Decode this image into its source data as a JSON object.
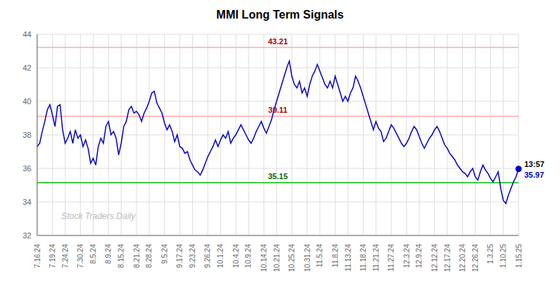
{
  "chart_data": {
    "type": "line",
    "title": "MMI Long Term Signals",
    "color": "#0000cc",
    "grid": true,
    "ylim": [
      32,
      44
    ],
    "yticks": [
      32,
      34,
      36,
      38,
      40,
      42,
      44
    ],
    "watermark": "Stock Traders Daily",
    "hlines": [
      {
        "value": 43.21,
        "label": "43.21",
        "color": "#ffaaaa",
        "label_color": "#aa0000"
      },
      {
        "value": 39.11,
        "label": "39.11",
        "color": "#ffaaaa",
        "label_color": "#aa0000"
      },
      {
        "value": 35.15,
        "label": "35.15",
        "color": "#44cc44",
        "label_color": "#006600"
      }
    ],
    "last_point": {
      "label": "13:57",
      "value": 35.97
    },
    "categories": [
      "7.16.24",
      null,
      null,
      null,
      null,
      null,
      "7.19.24",
      null,
      null,
      null,
      null,
      "7.24.24",
      null,
      null,
      null,
      null,
      null,
      "7.30.24",
      null,
      null,
      null,
      null,
      "8.5.24",
      null,
      null,
      null,
      null,
      null,
      "8.9.24",
      null,
      null,
      null,
      null,
      "8.15.24",
      null,
      null,
      null,
      null,
      null,
      "8.21.24",
      null,
      null,
      null,
      null,
      "8.28.24",
      null,
      null,
      null,
      null,
      null,
      "9.5.24",
      null,
      null,
      null,
      null,
      null,
      "9.17.24",
      null,
      null,
      null,
      null,
      "9.23.24",
      null,
      null,
      null,
      null,
      null,
      "9.26.24",
      null,
      null,
      null,
      null,
      "10.1.24",
      null,
      null,
      null,
      null,
      null,
      "10.4.24",
      null,
      null,
      null,
      null,
      "10.9.24",
      null,
      null,
      null,
      null,
      null,
      "10.14.24",
      null,
      null,
      null,
      null,
      "10.21.24",
      null,
      null,
      null,
      null,
      null,
      "10.25.24",
      null,
      null,
      null,
      null,
      null,
      "10.31.24",
      null,
      null,
      null,
      null,
      "11.5.24",
      null,
      null,
      null,
      null,
      null,
      "11.8.24",
      null,
      null,
      null,
      null,
      "11.13.24",
      null,
      null,
      null,
      null,
      null,
      "11.18.24",
      null,
      null,
      null,
      null,
      "11.21.24",
      null,
      null,
      null,
      null,
      null,
      "11.27.24",
      null,
      null,
      null,
      null,
      null,
      "12.3.24",
      null,
      null,
      null,
      null,
      "12.9.24",
      null,
      null,
      null,
      null,
      null,
      "12.12.24",
      null,
      null,
      null,
      null,
      "12.17.24",
      null,
      null,
      null,
      null,
      null,
      "12.20.24",
      null,
      null,
      null,
      null,
      "12.26.24",
      null,
      null,
      null,
      null,
      null,
      "1.3.25",
      null,
      null,
      null,
      null,
      "1.10.25",
      null,
      null,
      null,
      null,
      null,
      "1.15.25"
    ],
    "values": [
      37.3,
      37.5,
      38.2,
      38.8,
      39.5,
      39.8,
      39.2,
      38.5,
      39.7,
      39.8,
      38.3,
      37.5,
      37.8,
      38.2,
      37.5,
      38.3,
      37.8,
      38.0,
      37.3,
      37.7,
      37.2,
      36.3,
      36.6,
      36.2,
      37.3,
      37.8,
      37.5,
      38.5,
      38.8,
      38.0,
      38.2,
      37.8,
      36.8,
      37.5,
      38.5,
      38.8,
      39.5,
      39.7,
      39.3,
      39.4,
      39.2,
      38.8,
      39.3,
      39.6,
      40.0,
      40.5,
      40.6,
      39.9,
      39.6,
      39.3,
      38.7,
      38.3,
      38.6,
      38.2,
      37.6,
      38.0,
      37.3,
      37.2,
      36.9,
      37.0,
      36.5,
      36.2,
      35.9,
      35.8,
      35.6,
      35.9,
      36.3,
      36.7,
      37.0,
      37.3,
      37.7,
      37.3,
      37.7,
      38.0,
      37.8,
      38.2,
      37.5,
      37.8,
      38.0,
      38.3,
      38.6,
      38.3,
      38.0,
      37.7,
      37.5,
      37.8,
      38.2,
      38.5,
      38.8,
      38.4,
      38.1,
      38.5,
      38.9,
      39.5,
      40.0,
      40.5,
      41.0,
      41.5,
      42.0,
      42.4,
      41.5,
      41.0,
      40.8,
      41.2,
      40.5,
      40.8,
      40.3,
      41.0,
      41.5,
      41.8,
      42.2,
      41.8,
      41.4,
      41.0,
      40.8,
      41.2,
      40.8,
      41.5,
      41.0,
      40.5,
      40.0,
      40.3,
      40.0,
      40.5,
      40.8,
      41.5,
      41.2,
      40.8,
      40.3,
      39.8,
      39.3,
      38.8,
      38.3,
      38.8,
      38.4,
      38.2,
      37.6,
      37.8,
      38.2,
      38.6,
      38.4,
      38.1,
      37.8,
      37.5,
      37.3,
      37.5,
      37.8,
      38.2,
      38.5,
      38.3,
      37.9,
      37.5,
      37.2,
      37.5,
      37.8,
      38.0,
      38.3,
      38.5,
      38.2,
      37.8,
      37.4,
      37.2,
      36.9,
      36.7,
      36.5,
      36.2,
      36.0,
      35.8,
      35.7,
      35.5,
      35.8,
      36.0,
      35.5,
      35.3,
      35.8,
      36.2,
      35.9,
      35.7,
      35.4,
      35.2,
      35.5,
      35.8,
      34.8,
      34.1,
      33.9,
      34.4,
      34.8,
      35.2,
      35.5,
      35.97
    ]
  }
}
